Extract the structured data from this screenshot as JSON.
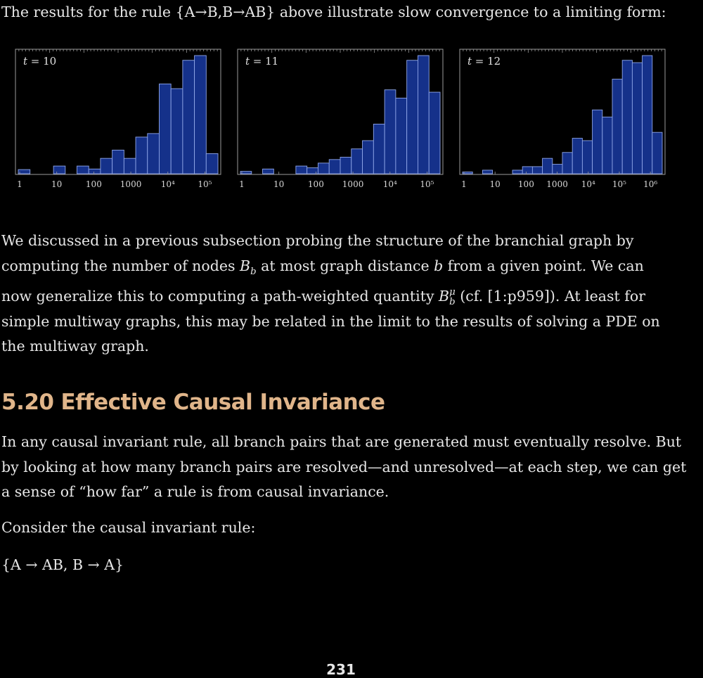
{
  "intro_text": "The results for the rule {A→B,B→AB} above illustrate slow convergence to a limiting form:",
  "chart_data": [
    {
      "type": "bar",
      "label_var": "t",
      "label_value": "10",
      "x_scale": "log",
      "tick_labels": [
        "1",
        "10",
        "100",
        "1000",
        "10⁴",
        "10⁵"
      ],
      "bars": [
        0.035,
        0.0,
        0.0,
        0.065,
        0.0,
        0.065,
        0.04,
        0.13,
        0.2,
        0.13,
        0.31,
        0.34,
        0.76,
        0.72,
        0.96,
        1.0,
        0.17
      ],
      "bar_color": "#15318a"
    },
    {
      "type": "bar",
      "label_var": "t",
      "label_value": "11",
      "x_scale": "log",
      "tick_labels": [
        "1",
        "10",
        "100",
        "1000",
        "10⁴",
        "10⁵"
      ],
      "bars": [
        0.02,
        0.0,
        0.04,
        0.0,
        0.0,
        0.065,
        0.05,
        0.09,
        0.12,
        0.14,
        0.21,
        0.28,
        0.42,
        0.71,
        0.64,
        0.96,
        1.0,
        0.69
      ],
      "bar_color": "#15318a"
    },
    {
      "type": "bar",
      "label_var": "t",
      "label_value": "12",
      "x_scale": "log",
      "tick_labels": [
        "1",
        "10",
        "100",
        "1000",
        "10⁴",
        "10⁵",
        "10⁶"
      ],
      "bars": [
        0.015,
        0.0,
        0.03,
        0.0,
        0.0,
        0.03,
        0.06,
        0.06,
        0.13,
        0.08,
        0.18,
        0.3,
        0.28,
        0.54,
        0.48,
        0.8,
        0.96,
        0.94,
        1.0,
        0.35
      ],
      "bar_color": "#15318a"
    }
  ],
  "branchial_para": {
    "l1": "We discussed in a previous subsection probing the structure of the branchial graph by",
    "l2_a": "computing the number of nodes ",
    "l2_B": "B",
    "l2_b": "b",
    "l2_c": " at most graph distance ",
    "l2_bvar": "b",
    "l2_d": " from a given point. We can",
    "l3_a": "now generalize this to computing a path-weighted quantity ",
    "l3_B": "B",
    "l3_mu": "μ",
    "l3_b": "b",
    "l3_c": " (cf. [1:p959]). At least for",
    "l4": "simple multiway graphs, this may be related in the limit to the results of solving a PDE on",
    "l5": "the multiway graph."
  },
  "section": {
    "number": "5.20",
    "title": "Effective Causal Invariance"
  },
  "causal_para": {
    "l1": "In any causal invariant rule, all branch pairs that are generated must eventually resolve. But",
    "l2": "by looking at how many branch pairs are resolved—and unresolved—at each step, we can get",
    "l3": "a sense of “how far” a rule is from causal invariance."
  },
  "consider_text": "Consider the causal invariant rule:",
  "rule_text": "{A → AB, B → A}",
  "page_number": "231"
}
